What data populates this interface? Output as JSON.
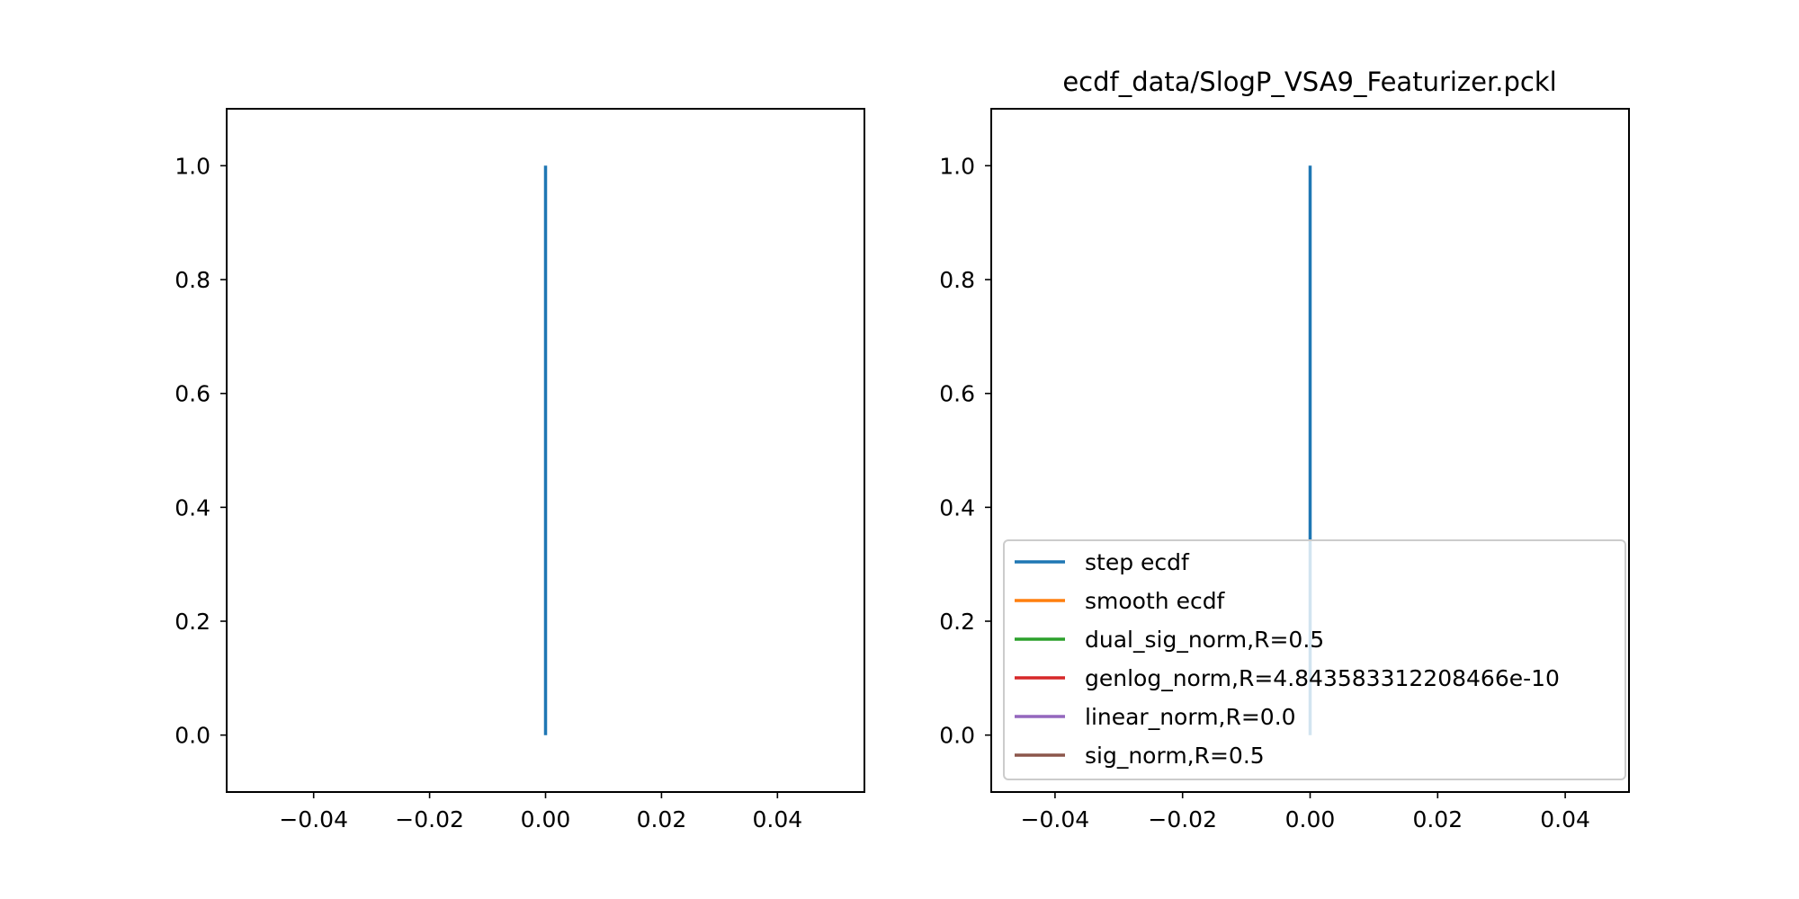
{
  "chart_data": [
    {
      "type": "line",
      "title": "",
      "xlabel": "",
      "ylabel": "",
      "xlim": [
        -0.055,
        0.055
      ],
      "ylim": [
        -0.1,
        1.1
      ],
      "xticks": [
        -0.04,
        -0.02,
        0.0,
        0.02,
        0.04
      ],
      "xtick_labels": [
        "−0.04",
        "−0.02",
        "0.00",
        "0.02",
        "0.04"
      ],
      "yticks": [
        0.0,
        0.2,
        0.4,
        0.6,
        0.8,
        1.0
      ],
      "ytick_labels": [
        "0.0",
        "0.2",
        "0.4",
        "0.6",
        "0.8",
        "1.0"
      ],
      "grid": false,
      "legend": null,
      "series": [
        {
          "color": "#1f77b4",
          "x": [
            0.0,
            0.0
          ],
          "y": [
            0.0,
            1.0
          ]
        }
      ]
    },
    {
      "type": "line",
      "title": "ecdf_data/SlogP_VSA9_Featurizer.pckl",
      "xlabel": "",
      "ylabel": "",
      "xlim": [
        -0.05,
        0.05
      ],
      "ylim": [
        -0.1,
        1.1
      ],
      "xticks": [
        -0.04,
        -0.02,
        0.0,
        0.02,
        0.04
      ],
      "xtick_labels": [
        "−0.04",
        "−0.02",
        "0.00",
        "0.02",
        "0.04"
      ],
      "yticks": [
        0.0,
        0.2,
        0.4,
        0.6,
        0.8,
        1.0
      ],
      "ytick_labels": [
        "0.0",
        "0.2",
        "0.4",
        "0.6",
        "0.8",
        "1.0"
      ],
      "grid": false,
      "legend": "lower-right",
      "series": [
        {
          "name": "step ecdf",
          "color": "#1f77b4",
          "x": [
            0.0,
            0.0
          ],
          "y": [
            0.0,
            1.0
          ]
        },
        {
          "name": "smooth ecdf",
          "color": "#ff7f0e",
          "x": [],
          "y": []
        },
        {
          "name": "dual_sig_norm,R=0.5",
          "color": "#2ca02c",
          "x": [],
          "y": []
        },
        {
          "name": "genlog_norm,R=4.843583312208466e-10",
          "color": "#d62728",
          "x": [],
          "y": []
        },
        {
          "name": "linear_norm,R=0.0",
          "color": "#9467bd",
          "x": [],
          "y": []
        },
        {
          "name": "sig_norm,R=0.5",
          "color": "#8c564b",
          "x": [],
          "y": []
        }
      ]
    }
  ]
}
